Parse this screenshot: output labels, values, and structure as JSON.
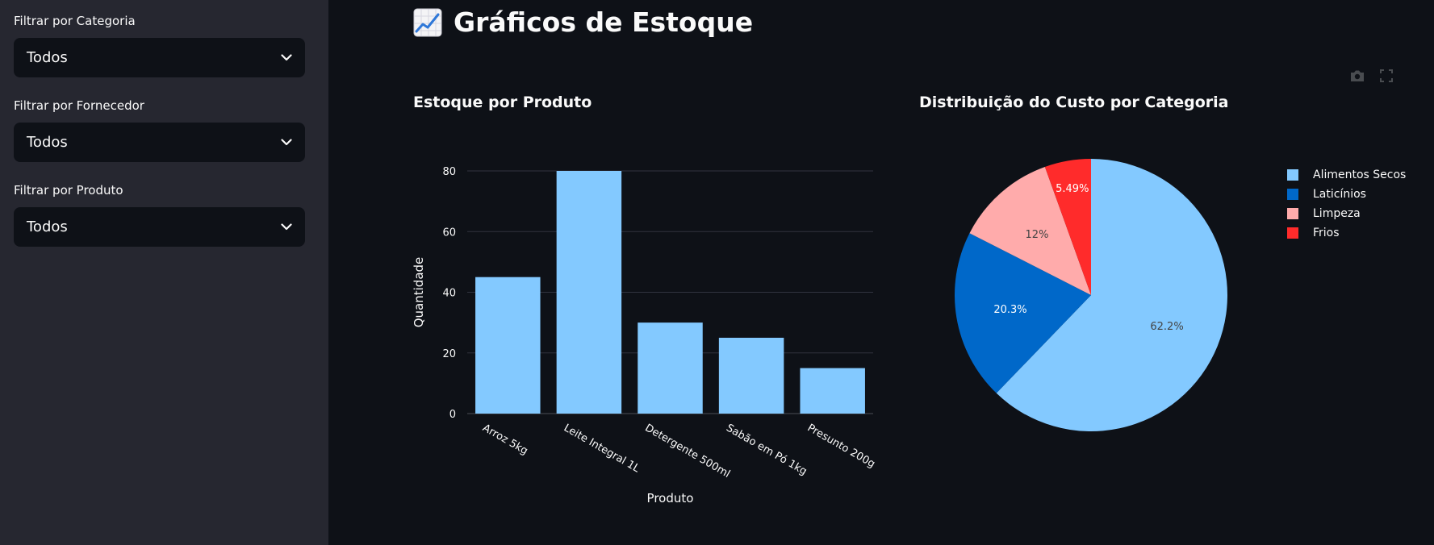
{
  "sidebar": {
    "filters": [
      {
        "label": "Filtrar por Categoria",
        "value": "Todos"
      },
      {
        "label": "Filtrar por Fornecedor",
        "value": "Todos"
      },
      {
        "label": "Filtrar por Produto",
        "value": "Todos"
      }
    ]
  },
  "page": {
    "title": "Gráficos de Estoque",
    "title_icon": "chart-increasing-icon"
  },
  "toolbar": {
    "icons": [
      "camera-icon",
      "fullscreen-icon"
    ]
  },
  "chart_data": [
    {
      "type": "bar",
      "title": "Estoque por Produto",
      "xlabel": "Produto",
      "ylabel": "Quantidade",
      "categories": [
        "Arroz 5kg",
        "Leite Integral 1L",
        "Detergente 500ml",
        "Sabão em Pó 1kg",
        "Presunto 200g"
      ],
      "values": [
        45,
        80,
        30,
        25,
        15
      ],
      "ylim": [
        0,
        80
      ],
      "yticks": [
        0,
        20,
        40,
        60,
        80
      ],
      "grid": true,
      "color": "#83c9ff"
    },
    {
      "type": "pie",
      "title": "Distribuição do Custo por Categoria",
      "labels": [
        "Alimentos Secos",
        "Laticínios",
        "Limpeza",
        "Frios"
      ],
      "values": [
        62.2,
        20.3,
        12,
        5.49
      ],
      "value_labels": [
        "62.2%",
        "20.3%",
        "12%",
        "5.49%"
      ],
      "colors": [
        "#83c9ff",
        "#0068c9",
        "#ffabab",
        "#ff2b2b"
      ],
      "label_colors": [
        "#444444",
        "#ffffff",
        "#444444",
        "#ffffff"
      ],
      "legend": "right"
    }
  ]
}
